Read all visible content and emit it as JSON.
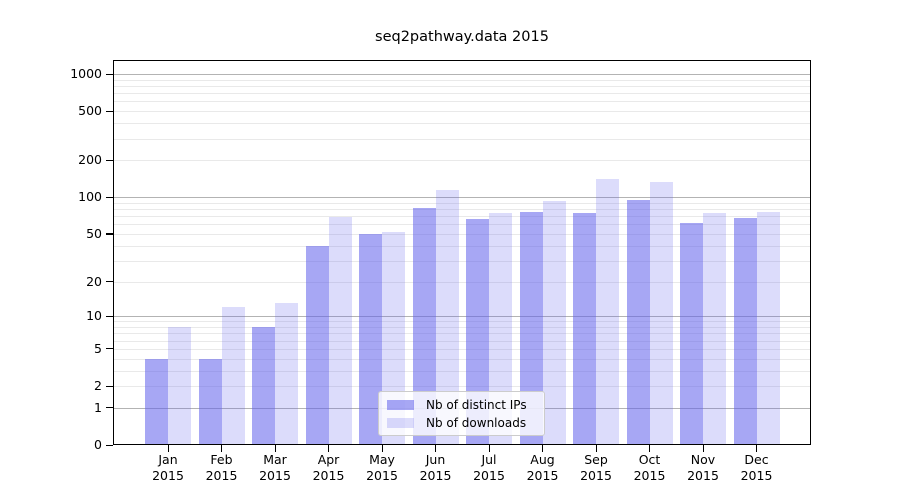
{
  "chart_data": {
    "type": "bar",
    "title": "seq2pathway.data 2015",
    "categories": [
      "Jan",
      "Feb",
      "Mar",
      "Apr",
      "May",
      "Jun",
      "Jul",
      "Aug",
      "Sep",
      "Oct",
      "Nov",
      "Dec"
    ],
    "category_year": "2015",
    "series": [
      {
        "name": "Nb of distinct IPs",
        "values": [
          4,
          4,
          8,
          40,
          50,
          82,
          66,
          75,
          74,
          95,
          62,
          67
        ],
        "fill": "rgba(95,95,235,0.55)"
      },
      {
        "name": "Nb of downloads",
        "values": [
          8,
          12,
          13,
          69,
          52,
          114,
          74,
          93,
          140,
          133,
          74,
          76
        ],
        "fill": "rgba(95,95,235,0.22)"
      }
    ],
    "y_axis": {
      "scale": "log10(1+y)",
      "tick_values": [
        0,
        1,
        2,
        5,
        10,
        20,
        50,
        100,
        200,
        500,
        1000
      ],
      "major_gridlines": [
        1,
        10,
        100,
        1000
      ],
      "minor_gridlines": [
        2,
        3,
        4,
        5,
        6,
        7,
        8,
        9,
        20,
        30,
        40,
        50,
        60,
        70,
        80,
        90,
        200,
        300,
        400,
        500,
        600,
        700,
        800,
        900
      ],
      "range": [
        0,
        1300
      ]
    },
    "grid": true,
    "legend": {
      "location": "inside-bottom-center"
    }
  },
  "colors": {
    "bar_base": "#5f5feb",
    "major_grid": "#b3b3b3",
    "minor_grid": "#e9e9e9",
    "axis": "#000000",
    "legend_border": "#cccccc",
    "legend_bg": "rgba(255,255,255,0.8)",
    "text": "#000000"
  }
}
